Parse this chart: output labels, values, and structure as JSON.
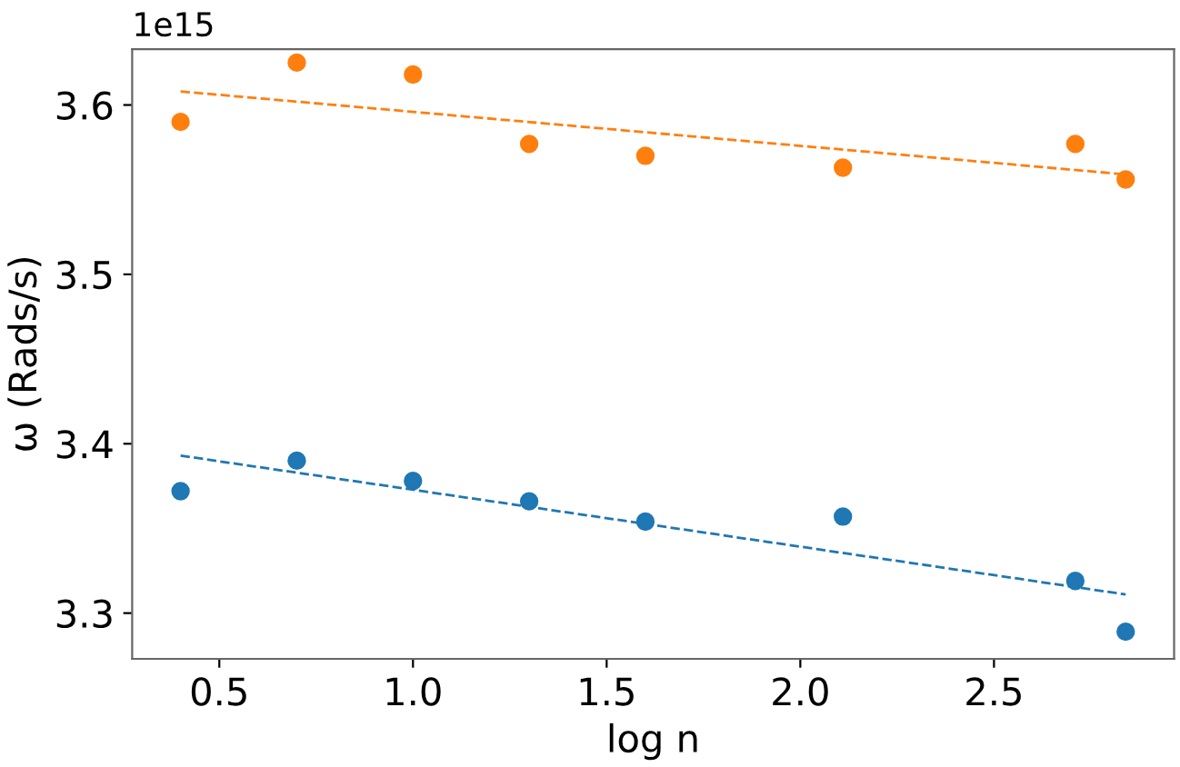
{
  "chart_data": {
    "type": "scatter",
    "xlabel": "log n",
    "ylabel": "ω (Rads/s)",
    "annotations": [
      "1e15"
    ],
    "grid": false,
    "legend": false,
    "xlim": [
      0.275,
      2.965
    ],
    "ylim": [
      3.273,
      3.633
    ],
    "xticks": [
      0.5,
      {
        "value": 1.0,
        "label": "1.0"
      },
      1.5,
      {
        "value": 2.0,
        "label": "2.0"
      },
      2.5
    ],
    "yticks": [
      3.3,
      3.4,
      3.5,
      3.6
    ],
    "series": [
      {
        "marker": "circle",
        "color": "#1f77b4",
        "x": [
          0.4,
          0.7,
          1.0,
          1.3,
          1.6,
          2.11,
          2.71,
          2.84
        ],
        "values": [
          3.372,
          3.39,
          3.378,
          3.366,
          3.354,
          3.357,
          3.319,
          3.289
        ]
      },
      {
        "marker": "circle",
        "color": "#ff7f0e",
        "x": [
          0.4,
          0.7,
          1.0,
          1.3,
          1.6,
          2.11,
          2.71,
          2.84
        ],
        "values": [
          3.59,
          3.625,
          3.618,
          3.577,
          3.57,
          3.563,
          3.577,
          3.556
        ]
      },
      {
        "type": "line",
        "marker": "none",
        "line_style": "dashed",
        "color": "#1f77b4",
        "x": [
          0.4,
          2.84
        ],
        "values": [
          3.393,
          3.311
        ]
      },
      {
        "type": "line",
        "marker": "none",
        "line_style": "dashed",
        "color": "#ff7f0e",
        "x": [
          0.4,
          2.84
        ],
        "values": [
          3.608,
          3.559
        ]
      }
    ]
  }
}
